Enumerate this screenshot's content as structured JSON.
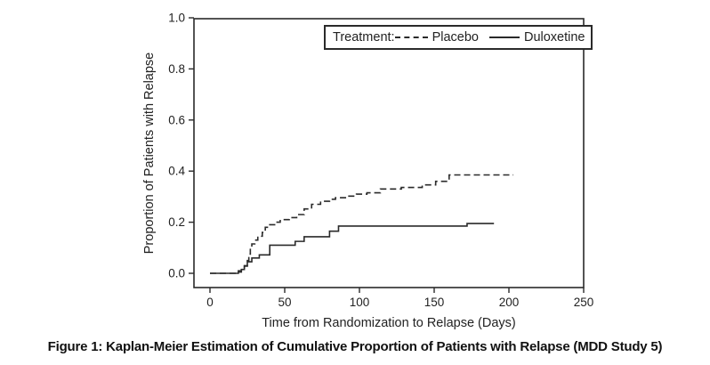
{
  "figure": {
    "caption": "Figure 1: Kaplan-Meier Estimation of Cumulative Proportion of Patients with Relapse (MDD Study 5)"
  },
  "colors": {
    "line": "#2a2a2a",
    "text": "#222222",
    "background": "#ffffff"
  },
  "chart_data": {
    "type": "line",
    "subtype": "kaplan-meier-step",
    "title": "",
    "xlabel": "Time from Randomization to Relapse (Days)",
    "ylabel": "Proportion of Patients with Relapse",
    "xlim": [
      0,
      250
    ],
    "ylim": [
      0.0,
      1.0
    ],
    "x_ticks": [
      "0",
      "50",
      "100",
      "150",
      "200",
      "250"
    ],
    "y_ticks": [
      "0.0",
      "0.2",
      "0.4",
      "0.6",
      "0.8",
      "1.0"
    ],
    "grid": false,
    "frame": true,
    "legend": {
      "position": "top-right-inside",
      "prefix": "Treatment:",
      "entries": [
        {
          "name": "Placebo",
          "line_style": "dashed"
        },
        {
          "name": "Duloxetine",
          "line_style": "solid"
        }
      ]
    },
    "series": [
      {
        "name": "Placebo",
        "style": "dashed",
        "points": [
          [
            0,
            0
          ],
          [
            19,
            0.01
          ],
          [
            21,
            0.02
          ],
          [
            23,
            0.03
          ],
          [
            25,
            0.05
          ],
          [
            26,
            0.075
          ],
          [
            27,
            0.1
          ],
          [
            28,
            0.115
          ],
          [
            30,
            0.13
          ],
          [
            32,
            0.145
          ],
          [
            35,
            0.16
          ],
          [
            37,
            0.18
          ],
          [
            40,
            0.19
          ],
          [
            44,
            0.2
          ],
          [
            47,
            0.21
          ],
          [
            53,
            0.218
          ],
          [
            58,
            0.23
          ],
          [
            63,
            0.252
          ],
          [
            68,
            0.27
          ],
          [
            74,
            0.282
          ],
          [
            80,
            0.29
          ],
          [
            84,
            0.296
          ],
          [
            92,
            0.302
          ],
          [
            98,
            0.31
          ],
          [
            105,
            0.315
          ],
          [
            114,
            0.33
          ],
          [
            128,
            0.336
          ],
          [
            142,
            0.346
          ],
          [
            151,
            0.36
          ],
          [
            160,
            0.385
          ],
          [
            203,
            0.385
          ]
        ]
      },
      {
        "name": "Duloxetine",
        "style": "solid",
        "points": [
          [
            0,
            0
          ],
          [
            19,
            0.005
          ],
          [
            21,
            0.015
          ],
          [
            23,
            0.028
          ],
          [
            25,
            0.045
          ],
          [
            28,
            0.06
          ],
          [
            33,
            0.072
          ],
          [
            40,
            0.11
          ],
          [
            57,
            0.125
          ],
          [
            63,
            0.143
          ],
          [
            80,
            0.165
          ],
          [
            86,
            0.185
          ],
          [
            172,
            0.195
          ],
          [
            190,
            0.195
          ]
        ]
      }
    ]
  }
}
